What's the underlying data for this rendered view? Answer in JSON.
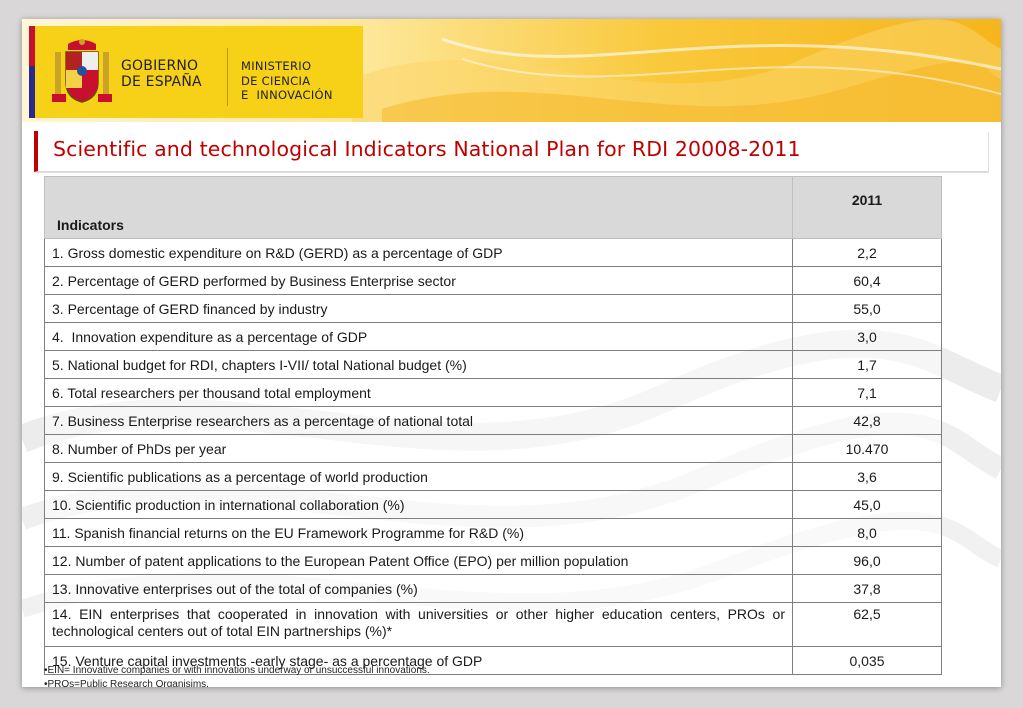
{
  "header": {
    "logo_line1": "GOBIERNO",
    "logo_line2": "DE ESPAÑA",
    "ministry_line1": "MINISTERIO",
    "ministry_line2": "DE CIENCIA",
    "ministry_line3": "E  INNOVACIÓN"
  },
  "title": "Scientific and technological Indicators National Plan for RDI 20008-2011",
  "table": {
    "columns": [
      "Indicators",
      "2011"
    ],
    "rows": [
      {
        "indicator": "1. Gross domestic expenditure on R&D (GERD) as a percentage of GDP",
        "value": "2,2"
      },
      {
        "indicator": "2. Percentage of GERD performed by Business Enterprise sector",
        "value": "60,4"
      },
      {
        "indicator": "3. Percentage of GERD financed by industry",
        "value": "55,0"
      },
      {
        "indicator": "4.  Innovation expenditure as a percentage of GDP",
        "value": "3,0"
      },
      {
        "indicator": "5. National budget for RDI, chapters I-VII/ total National budget (%)",
        "value": "1,7"
      },
      {
        "indicator": "6. Total researchers per thousand total employment",
        "value": "7,1"
      },
      {
        "indicator": "7. Business Enterprise researchers as a percentage of national total",
        "value": "42,8"
      },
      {
        "indicator": "8. Number of PhDs per year",
        "value": "10.470"
      },
      {
        "indicator": "9. Scientific publications as a percentage of world production",
        "value": "3,6"
      },
      {
        "indicator": "10. Scientific production in international collaboration (%)",
        "value": "45,0"
      },
      {
        "indicator": "11. Spanish financial returns on the EU Framework Programme for R&D (%)",
        "value": "8,0"
      },
      {
        "indicator": "12. Number of patent applications to the European Patent Office (EPO) per million population",
        "value": "96,0"
      },
      {
        "indicator": "13. Innovative enterprises out of the total of companies (%)",
        "value": "37,8"
      },
      {
        "indicator": "14. EIN enterprises that cooperated in innovation with universities or other higher education centers, PROs or technological centers out of total EIN partnerships (%)*",
        "value": "62,5"
      },
      {
        "indicator": "15. Venture capital investments -early stage- as a percentage of GDP",
        "value": "0,035"
      }
    ]
  },
  "notes": [
    "•EIN= Innovative companies or with innovations underway or unsuccessful innovations.",
    "•PROs=Public Research Organisims."
  ]
}
